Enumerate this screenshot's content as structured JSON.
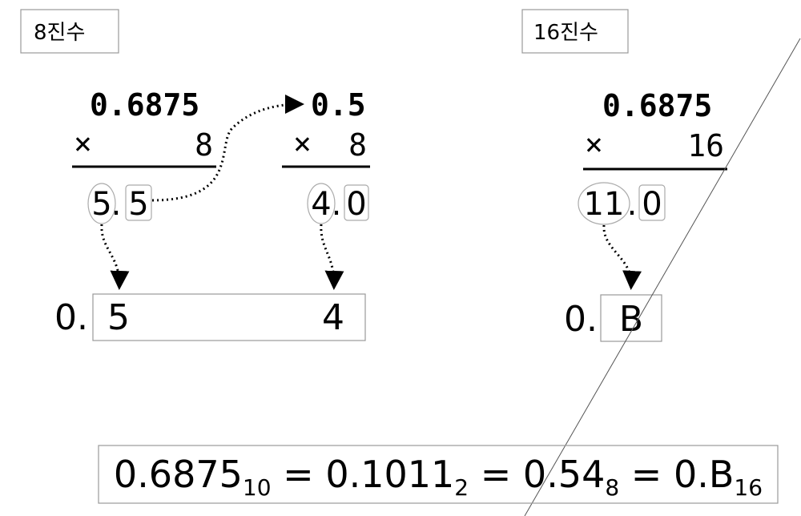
{
  "labels": {
    "octal": "8진수",
    "hex": "16진수"
  },
  "octal": {
    "step1": {
      "value": "0.6875",
      "times": "×",
      "multiplier": "8",
      "int_part": "5",
      "dot": ".",
      "frac_part": "5"
    },
    "step2": {
      "value": "0.5",
      "times": "×",
      "multiplier": "8",
      "int_part": "4",
      "dot": ".",
      "frac_part": "0"
    },
    "result": {
      "prefix": "0.",
      "digit1": "5",
      "digit2": "4"
    }
  },
  "hex": {
    "step1": {
      "value": "0.6875",
      "times": "×",
      "multiplier": "16",
      "int_part": "11",
      "dot": ".",
      "frac_part": "0"
    },
    "result": {
      "prefix": "0.",
      "digit1": "B"
    }
  },
  "equation": {
    "decimal": "0.6875",
    "decimal_base": "10",
    "eq1": " = ",
    "binary": "0.1011",
    "binary_base": "2",
    "eq2": " = ",
    "octal": "0.54",
    "octal_base": "8",
    "eq3": " = ",
    "hex": "0.B",
    "hex_base": "16"
  },
  "colors": {
    "stroke": "#000000",
    "box": "#999999",
    "diagonal": "#555555"
  }
}
